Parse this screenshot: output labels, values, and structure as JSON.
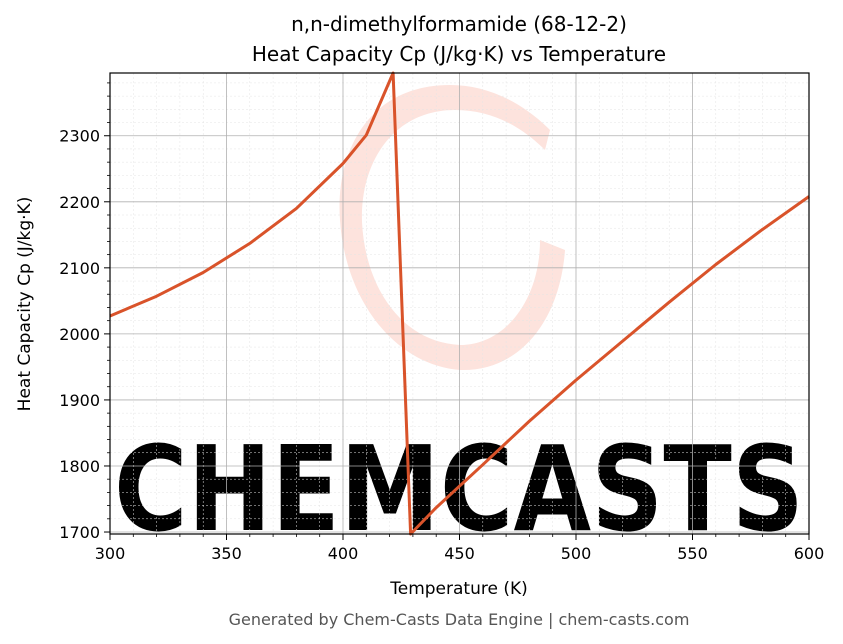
{
  "chart_data": {
    "type": "line",
    "title": "n,n-dimethylformamide (68-12-2)",
    "subtitle": "Heat Capacity Cp (J/kg·K) vs Temperature",
    "xlabel": "Temperature (K)",
    "ylabel": "Heat Capacity Cp (J/kg·K)",
    "xlim": [
      300,
      600
    ],
    "ylim": [
      1697,
      2395
    ],
    "x_ticks": [
      300,
      350,
      400,
      450,
      500,
      550,
      600
    ],
    "y_ticks": [
      1700,
      1800,
      1900,
      2000,
      2100,
      2200,
      2300
    ],
    "grid": true,
    "line_color": "#d9532a",
    "series": [
      {
        "x": [
          300,
          320,
          340,
          360,
          380,
          400,
          410,
          421.5,
          429,
          440,
          460,
          480,
          500,
          520,
          540,
          560,
          580,
          600
        ],
        "y": [
          2027,
          2057,
          2093,
          2137,
          2190,
          2258,
          2301,
          2395,
          1697,
          1737,
          1802,
          1868,
          1930,
          1989,
          2048,
          2105,
          2158,
          2208
        ]
      }
    ]
  },
  "watermark": {
    "text": "CHEMCASTS",
    "color": "#fde3dd"
  },
  "footer": "Generated by Chem-Casts Data Engine | chem-casts.com"
}
